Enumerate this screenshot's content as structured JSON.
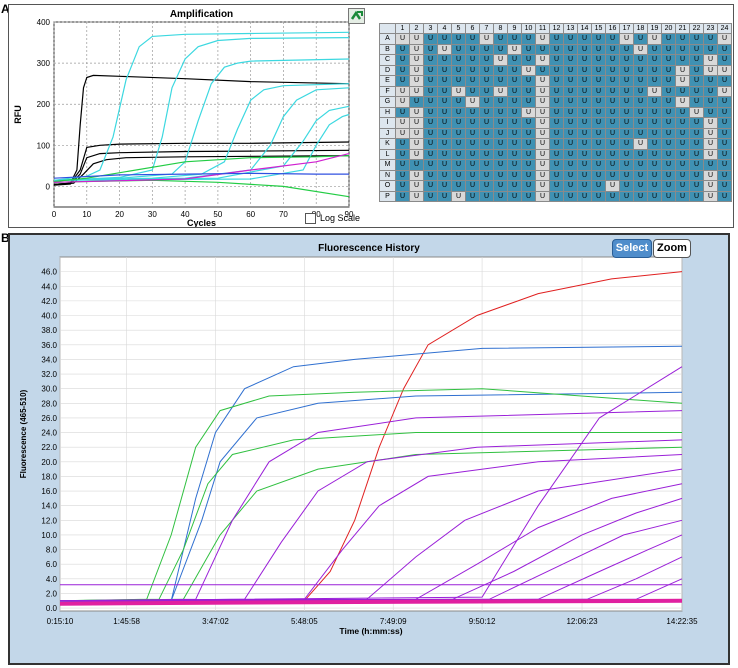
{
  "labels": {
    "a": "A",
    "b": "B"
  },
  "panelA": {
    "title": "Amplification",
    "log_scale_label": "Log Scale"
  },
  "panelB": {
    "title": "Fluorescence History",
    "select_label": "Select",
    "zoom_label": "Zoom"
  },
  "plate": {
    "columns": [
      "1",
      "2",
      "3",
      "4",
      "5",
      "6",
      "7",
      "8",
      "9",
      "10",
      "11",
      "12",
      "13",
      "14",
      "15",
      "16",
      "17",
      "18",
      "19",
      "20",
      "21",
      "22",
      "23",
      "24"
    ],
    "rows": [
      "A",
      "B",
      "C",
      "D",
      "E",
      "F",
      "G",
      "H",
      "I",
      "J",
      "K",
      "L",
      "M",
      "N",
      "O",
      "P"
    ],
    "cell_letter": "U",
    "colors": {
      "selected": "#3f91b3",
      "unselected": "#d9d9d9",
      "header": "#dde6ee"
    },
    "selected_cells": {
      "A": [
        3,
        4,
        5,
        6,
        8,
        9,
        10,
        12,
        13,
        14,
        15,
        16,
        18,
        20,
        21,
        22,
        23
      ],
      "B": [
        1,
        3,
        5,
        6,
        7,
        8,
        10,
        11,
        12,
        13,
        14,
        15,
        16,
        17,
        19,
        20,
        21,
        22,
        23,
        24
      ],
      "C": [
        1,
        3,
        4,
        5,
        6,
        7,
        9,
        10,
        12,
        13,
        14,
        15,
        16,
        17,
        18,
        19,
        20,
        21,
        22,
        24
      ],
      "D": [
        1,
        3,
        4,
        5,
        6,
        7,
        8,
        9,
        11,
        12,
        13,
        14,
        15,
        16,
        17,
        18,
        19,
        20,
        22
      ],
      "E": [
        1,
        3,
        4,
        5,
        6,
        7,
        8,
        9,
        10,
        12,
        13,
        14,
        15,
        16,
        17,
        18,
        19,
        20,
        22,
        23,
        24
      ],
      "F": [
        3,
        4,
        6,
        7,
        9,
        10,
        12,
        13,
        14,
        15,
        16,
        17,
        18,
        20,
        21,
        22,
        23
      ],
      "G": [
        2,
        3,
        4,
        5,
        7,
        8,
        9,
        10,
        12,
        13,
        14,
        15,
        16,
        17,
        18,
        19,
        20,
        22,
        23,
        24
      ],
      "H": [
        1,
        3,
        4,
        5,
        6,
        7,
        8,
        9,
        12,
        13,
        14,
        15,
        16,
        17,
        18,
        19,
        20,
        21,
        23,
        24
      ],
      "I": [
        3,
        4,
        5,
        6,
        7,
        8,
        9,
        10,
        12,
        13,
        14,
        15,
        16,
        17,
        18,
        19,
        20,
        21,
        22,
        24
      ],
      "J": [
        3,
        4,
        5,
        6,
        7,
        8,
        9,
        10,
        12,
        13,
        14,
        15,
        16,
        17,
        18,
        19,
        20,
        21,
        22,
        24
      ],
      "K": [
        1,
        3,
        4,
        5,
        6,
        7,
        8,
        9,
        10,
        12,
        13,
        14,
        15,
        16,
        17,
        19,
        20,
        21,
        22,
        24
      ],
      "L": [
        1,
        3,
        4,
        5,
        6,
        7,
        8,
        9,
        10,
        12,
        13,
        14,
        15,
        16,
        17,
        18,
        19,
        20,
        21,
        22,
        24
      ],
      "M": [
        1,
        2,
        3,
        4,
        5,
        6,
        7,
        8,
        9,
        10,
        12,
        13,
        14,
        15,
        16,
        17,
        18,
        19,
        20,
        21,
        22,
        23,
        24
      ],
      "N": [
        1,
        3,
        4,
        5,
        6,
        7,
        8,
        9,
        10,
        12,
        13,
        14,
        15,
        16,
        17,
        18,
        19,
        20,
        21,
        22,
        24
      ],
      "O": [
        1,
        3,
        4,
        5,
        6,
        7,
        8,
        9,
        10,
        12,
        13,
        14,
        15,
        17,
        18,
        19,
        20,
        21,
        22,
        24
      ],
      "P": [
        1,
        3,
        4,
        6,
        7,
        8,
        9,
        10,
        12,
        13,
        14,
        15,
        16,
        17,
        18,
        19,
        20,
        21,
        22,
        24
      ]
    }
  },
  "chart_data": [
    {
      "type": "line",
      "title": "Amplification",
      "xlabel": "Cycles",
      "ylabel": "RFU",
      "xlim": [
        0,
        90
      ],
      "ylim": [
        -50,
        400
      ],
      "xticks": [
        "0",
        "10",
        "20",
        "30",
        "40",
        "50",
        "60",
        "70",
        "80",
        "90"
      ],
      "yticks": [
        "0",
        "100",
        "200",
        "300",
        "400"
      ],
      "grid": true,
      "colors": {
        "black": "#000000",
        "cyan": "#3cd8e0",
        "green": "#22cc44",
        "magenta": "#d020d0",
        "blue": "#3050e0"
      },
      "series": [
        {
          "color": "black",
          "x": [
            0,
            5,
            7,
            8,
            9,
            10,
            12,
            20,
            40,
            60,
            90
          ],
          "y": [
            5,
            8,
            40,
            150,
            240,
            265,
            270,
            268,
            262,
            255,
            250
          ]
        },
        {
          "color": "black",
          "x": [
            0,
            5,
            8,
            10,
            14,
            20,
            40,
            60,
            90
          ],
          "y": [
            5,
            8,
            40,
            95,
            100,
            103,
            105,
            105,
            108
          ]
        },
        {
          "color": "black",
          "x": [
            0,
            5,
            8,
            10,
            14,
            20,
            40,
            60,
            90
          ],
          "y": [
            3,
            6,
            30,
            70,
            80,
            82,
            85,
            86,
            88
          ]
        },
        {
          "color": "black",
          "x": [
            0,
            6,
            9,
            12,
            16,
            22,
            40,
            90
          ],
          "y": [
            5,
            8,
            30,
            55,
            65,
            70,
            72,
            75
          ]
        },
        {
          "color": "cyan",
          "x": [
            0,
            5,
            10,
            14,
            18,
            22,
            26,
            30,
            40,
            60,
            90
          ],
          "y": [
            15,
            20,
            25,
            40,
            120,
            260,
            340,
            365,
            370,
            372,
            375
          ]
        },
        {
          "color": "cyan",
          "x": [
            0,
            10,
            20,
            30,
            33,
            36,
            40,
            44,
            50,
            60,
            90
          ],
          "y": [
            15,
            18,
            22,
            40,
            120,
            240,
            310,
            340,
            355,
            360,
            362
          ]
        },
        {
          "color": "cyan",
          "x": [
            0,
            20,
            36,
            40,
            44,
            48,
            52,
            56,
            60,
            90
          ],
          "y": [
            15,
            20,
            30,
            60,
            160,
            250,
            290,
            300,
            305,
            310
          ]
        },
        {
          "color": "cyan",
          "x": [
            0,
            30,
            45,
            52,
            56,
            60,
            64,
            70,
            90
          ],
          "y": [
            15,
            20,
            30,
            60,
            140,
            210,
            235,
            245,
            250
          ]
        },
        {
          "color": "cyan",
          "x": [
            0,
            40,
            60,
            66,
            70,
            74,
            80,
            90
          ],
          "y": [
            15,
            20,
            40,
            100,
            170,
            210,
            235,
            240
          ]
        },
        {
          "color": "cyan",
          "x": [
            0,
            50,
            70,
            76,
            80,
            84,
            90
          ],
          "y": [
            15,
            20,
            50,
            110,
            160,
            185,
            195
          ]
        },
        {
          "color": "cyan",
          "x": [
            0,
            60,
            76,
            80,
            84,
            88,
            90
          ],
          "y": [
            15,
            18,
            40,
            100,
            150,
            170,
            175
          ]
        },
        {
          "color": "green",
          "x": [
            0,
            10,
            30,
            50,
            70,
            90
          ],
          "y": [
            10,
            12,
            15,
            10,
            0,
            -25
          ]
        },
        {
          "color": "green",
          "x": [
            0,
            10,
            40,
            60,
            80,
            90
          ],
          "y": [
            12,
            20,
            60,
            70,
            72,
            75
          ]
        },
        {
          "color": "magenta",
          "x": [
            0,
            20,
            40,
            60,
            80,
            90
          ],
          "y": [
            10,
            14,
            18,
            40,
            60,
            80
          ]
        },
        {
          "color": "blue",
          "x": [
            0,
            20,
            40,
            60,
            80,
            90
          ],
          "y": [
            20,
            28,
            30,
            32,
            30,
            30
          ]
        }
      ]
    },
    {
      "type": "line",
      "title": "Fluorescence History",
      "xlabel": "Time (h:mm:ss)",
      "ylabel": "Fluorescence (465-510)",
      "ylim": [
        -0.4,
        48
      ],
      "x_range_seconds": [
        910,
        51755
      ],
      "xticks": [
        "0:15:10",
        "1:45:58",
        "3:47:02",
        "5:48:05",
        "7:49:09",
        "9:50:12",
        "12:06:23",
        "14:22:35"
      ],
      "xtick_seconds": [
        910,
        6358,
        13622,
        20885,
        28149,
        35412,
        43583,
        51755
      ],
      "yticks": [
        "0.0",
        "2.0",
        "4.0",
        "6.0",
        "8.0",
        "10.0",
        "12.0",
        "14.0",
        "16.0",
        "18.0",
        "20.0",
        "22.0",
        "24.0",
        "26.0",
        "28.0",
        "30.0",
        "32.0",
        "34.0",
        "36.0",
        "38.0",
        "40.0",
        "42.0",
        "44.0",
        "46.0"
      ],
      "grid": true,
      "colors": {
        "red": "#e02020",
        "blue": "#3070d0",
        "green": "#30c040",
        "purple": "#9a20d8",
        "magenta": "#e020a0"
      },
      "series": [
        {
          "color": "red",
          "x": [
            910,
            20885,
            23000,
            25000,
            27000,
            29000,
            31000,
            35000,
            40000,
            46000,
            51755
          ],
          "y": [
            0.5,
            1,
            5,
            12,
            22,
            30,
            36,
            40,
            43,
            45,
            46
          ]
        },
        {
          "color": "blue",
          "x": [
            910,
            10000,
            12000,
            13622,
            16000,
            20000,
            25000,
            35412,
            51755
          ],
          "y": [
            0.8,
            1,
            15,
            24,
            30,
            33,
            34,
            35.5,
            35.8
          ]
        },
        {
          "color": "blue",
          "x": [
            910,
            10000,
            12500,
            14000,
            17000,
            22000,
            30000,
            51755
          ],
          "y": [
            0.8,
            1,
            12,
            20,
            26,
            28,
            29,
            29.5
          ]
        },
        {
          "color": "green",
          "x": [
            910,
            8000,
            10000,
            12000,
            14000,
            18000,
            25000,
            35412,
            51755
          ],
          "y": [
            1,
            1.2,
            10,
            22,
            27,
            29,
            29.5,
            30,
            28
          ]
        },
        {
          "color": "green",
          "x": [
            910,
            9000,
            11000,
            13000,
            15000,
            20000,
            30000,
            51755
          ],
          "y": [
            1,
            1.2,
            8,
            17,
            21,
            23,
            24,
            24
          ]
        },
        {
          "color": "green",
          "x": [
            910,
            11000,
            14000,
            17000,
            22000,
            30000,
            51755
          ],
          "y": [
            1,
            1.2,
            10,
            16,
            19,
            21,
            22
          ]
        },
        {
          "color": "purple",
          "x": [
            910,
            12000,
            15000,
            18000,
            22000,
            30000,
            51755
          ],
          "y": [
            1,
            1.2,
            12,
            20,
            24,
            26,
            27
          ]
        },
        {
          "color": "purple",
          "x": [
            910,
            16000,
            19000,
            22000,
            26000,
            35000,
            51755
          ],
          "y": [
            1,
            1.2,
            9,
            16,
            20,
            22,
            23
          ]
        },
        {
          "color": "purple",
          "x": [
            910,
            20885,
            24000,
            27000,
            31000,
            40000,
            51755
          ],
          "y": [
            1,
            1.2,
            8,
            14,
            18,
            20,
            21
          ]
        },
        {
          "color": "purple",
          "x": [
            910,
            26000,
            30000,
            34000,
            40000,
            51755
          ],
          "y": [
            1,
            1.2,
            7,
            12,
            16,
            19
          ]
        },
        {
          "color": "purple",
          "x": [
            910,
            30000,
            35000,
            40000,
            46000,
            51755
          ],
          "y": [
            1,
            1.2,
            6,
            11,
            15,
            17
          ]
        },
        {
          "color": "purple",
          "x": [
            910,
            33000,
            38000,
            43583,
            48000,
            51755
          ],
          "y": [
            1,
            1.2,
            5,
            10,
            13,
            15
          ]
        },
        {
          "color": "purple",
          "x": [
            910,
            36000,
            42000,
            47000,
            51755
          ],
          "y": [
            1,
            1.2,
            6,
            10,
            12
          ]
        },
        {
          "color": "purple",
          "x": [
            910,
            40000,
            45000,
            49000,
            51755
          ],
          "y": [
            1,
            1.2,
            5,
            8,
            10
          ]
        },
        {
          "color": "purple",
          "x": [
            910,
            44000,
            48000,
            51755
          ],
          "y": [
            1,
            1.2,
            4,
            7
          ]
        },
        {
          "color": "purple",
          "x": [
            910,
            48000,
            51755
          ],
          "y": [
            1,
            1.2,
            4
          ]
        },
        {
          "color": "purple",
          "x": [
            910,
            35412,
            40000,
            45000,
            51755
          ],
          "y": [
            1,
            1.5,
            14,
            26,
            33
          ]
        },
        {
          "color": "purple",
          "x": [
            910,
            1500,
            51755
          ],
          "y": [
            3.2,
            3.2,
            3.2
          ]
        },
        {
          "color": "magenta",
          "x": [
            910,
            20885,
            35412,
            51755
          ],
          "y": [
            0.6,
            0.8,
            0.9,
            1
          ]
        }
      ]
    }
  ]
}
